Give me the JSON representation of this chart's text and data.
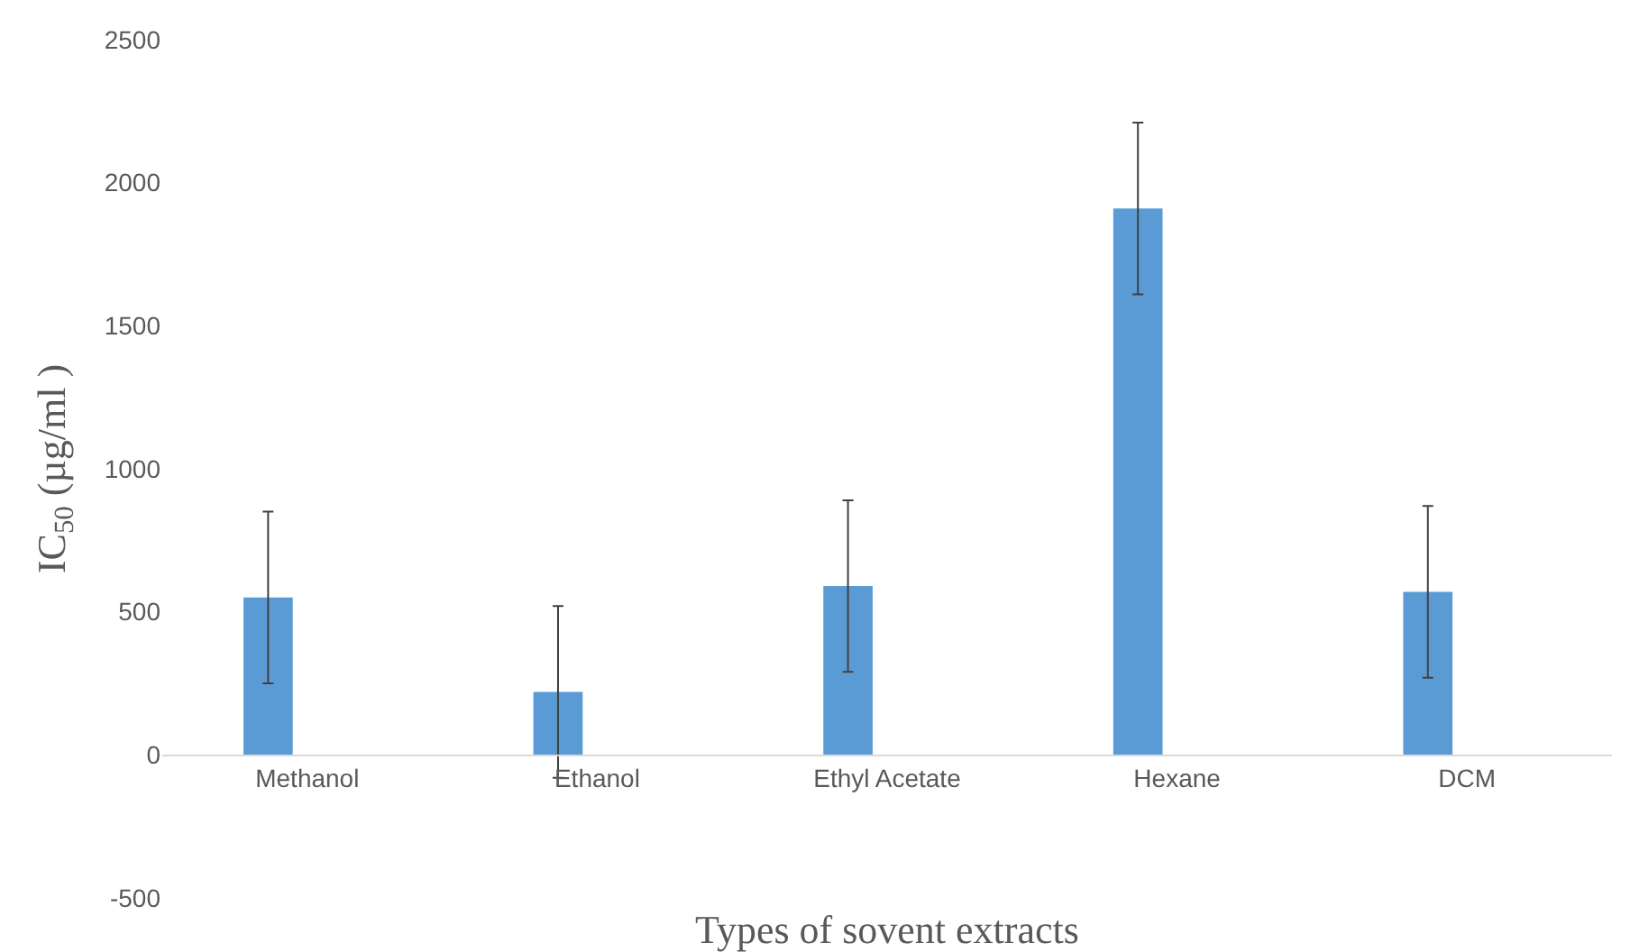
{
  "chart_data": {
    "type": "bar",
    "xlabel": "Types of sovent extracts",
    "ylabel": "IC$_{50}$ (µg/ml )",
    "categories": [
      "Methanol",
      "Ethanol",
      "Ethyl Acetate",
      "Hexane",
      "DCM"
    ],
    "values": [
      550,
      220,
      590,
      1910,
      570
    ],
    "errors": [
      300,
      300,
      300,
      300,
      300
    ],
    "color": "#5b9bd5",
    "ylim": [
      -500,
      2500
    ],
    "yticks": [
      -500,
      0,
      500,
      1000,
      1500,
      2000,
      2500
    ],
    "grid": false
  }
}
